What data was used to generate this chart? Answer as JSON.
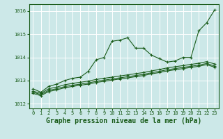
{
  "background_color": "#cce8e8",
  "grid_color": "#ffffff",
  "line_color": "#1a5c1a",
  "xlabel": "Graphe pression niveau de la mer (hPa)",
  "xlabel_fontsize": 7,
  "xlim": [
    -0.5,
    23.5
  ],
  "ylim": [
    1011.8,
    1016.3
  ],
  "yticks": [
    1012,
    1013,
    1014,
    1015,
    1016
  ],
  "xticks": [
    0,
    1,
    2,
    3,
    4,
    5,
    6,
    7,
    8,
    9,
    10,
    11,
    12,
    13,
    14,
    15,
    16,
    17,
    18,
    19,
    20,
    21,
    22,
    23
  ],
  "series": [
    [
      1012.65,
      1012.5,
      1012.75,
      1012.85,
      1013.0,
      1013.1,
      1013.15,
      1013.4,
      1013.9,
      1014.0,
      1014.7,
      1014.75,
      1014.85,
      1014.4,
      1014.4,
      1014.1,
      1013.95,
      1013.8,
      1013.85,
      1014.0,
      1014.0,
      1015.15,
      1015.5,
      1016.05
    ],
    [
      1012.55,
      1012.45,
      1012.65,
      1012.72,
      1012.82,
      1012.88,
      1012.93,
      1012.98,
      1013.05,
      1013.1,
      1013.15,
      1013.2,
      1013.25,
      1013.3,
      1013.35,
      1013.42,
      1013.48,
      1013.55,
      1013.6,
      1013.65,
      1013.7,
      1013.75,
      1013.82,
      1013.72
    ],
    [
      1012.5,
      1012.4,
      1012.58,
      1012.65,
      1012.74,
      1012.8,
      1012.85,
      1012.9,
      1012.97,
      1013.02,
      1013.07,
      1013.12,
      1013.17,
      1013.22,
      1013.27,
      1013.34,
      1013.4,
      1013.47,
      1013.52,
      1013.57,
      1013.62,
      1013.67,
      1013.74,
      1013.63
    ],
    [
      1012.45,
      1012.35,
      1012.53,
      1012.6,
      1012.69,
      1012.75,
      1012.8,
      1012.85,
      1012.92,
      1012.97,
      1013.02,
      1013.07,
      1013.12,
      1013.17,
      1013.22,
      1013.29,
      1013.35,
      1013.42,
      1013.47,
      1013.52,
      1013.57,
      1013.62,
      1013.69,
      1013.58
    ]
  ],
  "marker": "+",
  "markersize": 3,
  "linewidth": 0.8
}
